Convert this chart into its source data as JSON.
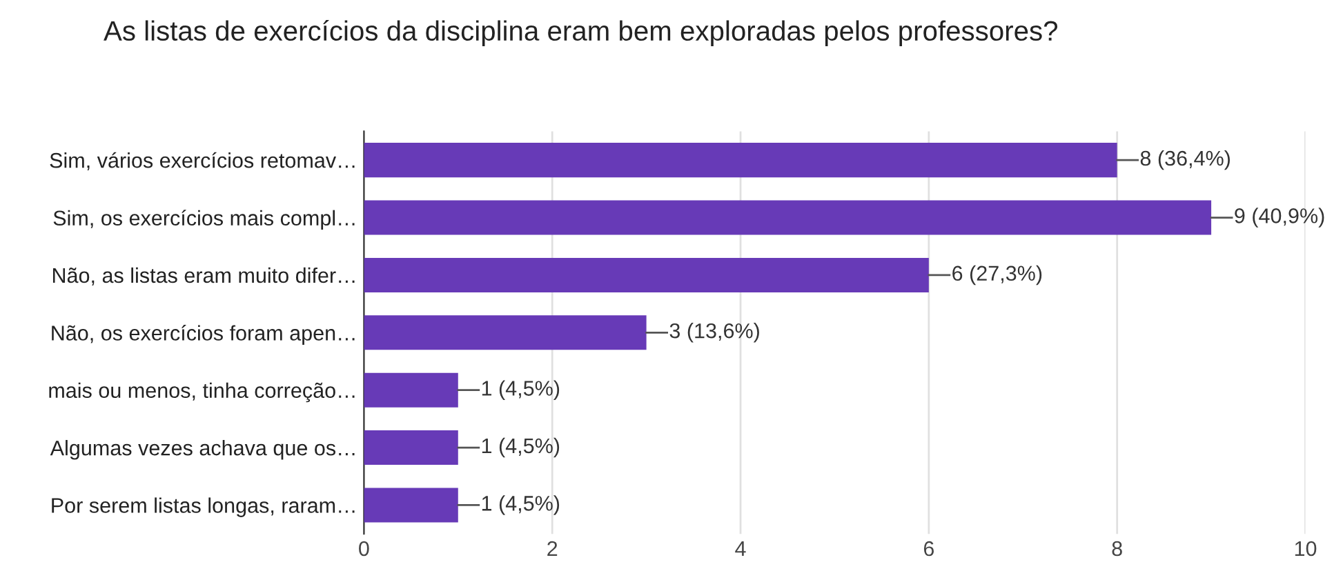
{
  "chart_data": {
    "type": "bar",
    "orientation": "horizontal",
    "title": "As listas de exercícios da disciplina eram bem exploradas pelos professores?",
    "categories": [
      "Sim, vários exercícios retomav…",
      "Sim, os exercícios mais compl…",
      "Não, as listas eram muito difer…",
      "Não, os exercícios foram apen…",
      "mais ou menos, tinha correção…",
      "Algumas vezes achava que os…",
      "Por serem listas longas, raram…"
    ],
    "values": [
      8,
      9,
      6,
      3,
      1,
      1,
      1
    ],
    "value_labels": [
      "8 (36,4%)",
      "9 (40,9%)",
      "6 (27,3%)",
      "3 (13,6%)",
      "1 (4,5%)",
      "1 (4,5%)",
      "1 (4,5%)"
    ],
    "color": "#673ab7",
    "xlim": [
      0,
      10
    ],
    "xticks": [
      0,
      2,
      4,
      6,
      8,
      10
    ],
    "grid": "x",
    "legend": false
  }
}
